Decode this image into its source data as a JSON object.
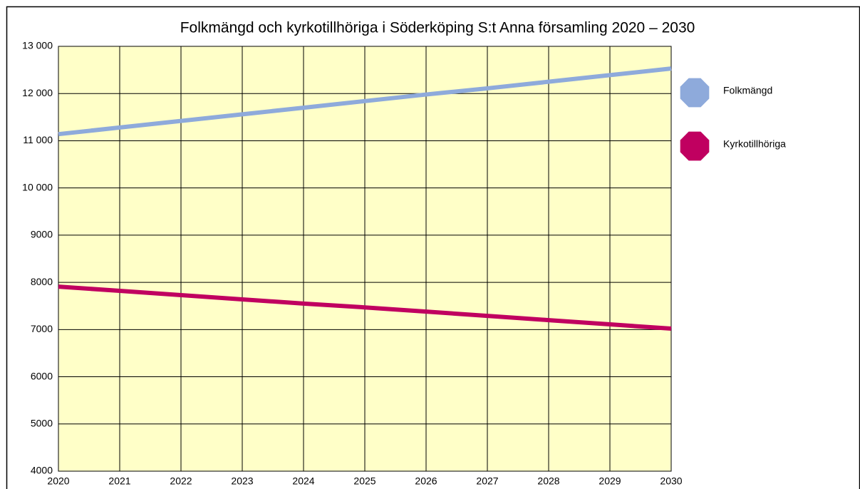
{
  "chart_data": {
    "type": "line",
    "title": "Folkmängd och kyrkotillhöriga i Söderköping S:t Anna församling 2020 – 2030",
    "x": [
      2020,
      2021,
      2022,
      2023,
      2024,
      2025,
      2026,
      2027,
      2028,
      2029,
      2030
    ],
    "xlim": [
      2020,
      2030
    ],
    "xticks": [
      2020,
      2021,
      2022,
      2023,
      2024,
      2025,
      2026,
      2027,
      2028,
      2029,
      2030
    ],
    "ylim": [
      4000,
      13000
    ],
    "yticks": [
      4000,
      5000,
      6000,
      7000,
      8000,
      9000,
      {
        "value": 10000,
        "label": "10 000"
      },
      {
        "value": 11000,
        "label": "11 000"
      },
      {
        "value": 12000,
        "label": "12 000"
      },
      {
        "value": 13000,
        "label": "13 000"
      }
    ],
    "grid": true,
    "legend": "right",
    "background": "#ffffc8",
    "series": [
      {
        "name": "Folkmängd",
        "color": "#8eaadb",
        "values": [
          11140,
          11280,
          11420,
          11560,
          11700,
          11840,
          11980,
          12110,
          12250,
          12390,
          12530
        ]
      },
      {
        "name": "Kyrkotillhöriga",
        "color": "#c00060",
        "values": [
          7910,
          7820,
          7730,
          7640,
          7550,
          7470,
          7380,
          7290,
          7200,
          7110,
          7020
        ]
      }
    ]
  }
}
